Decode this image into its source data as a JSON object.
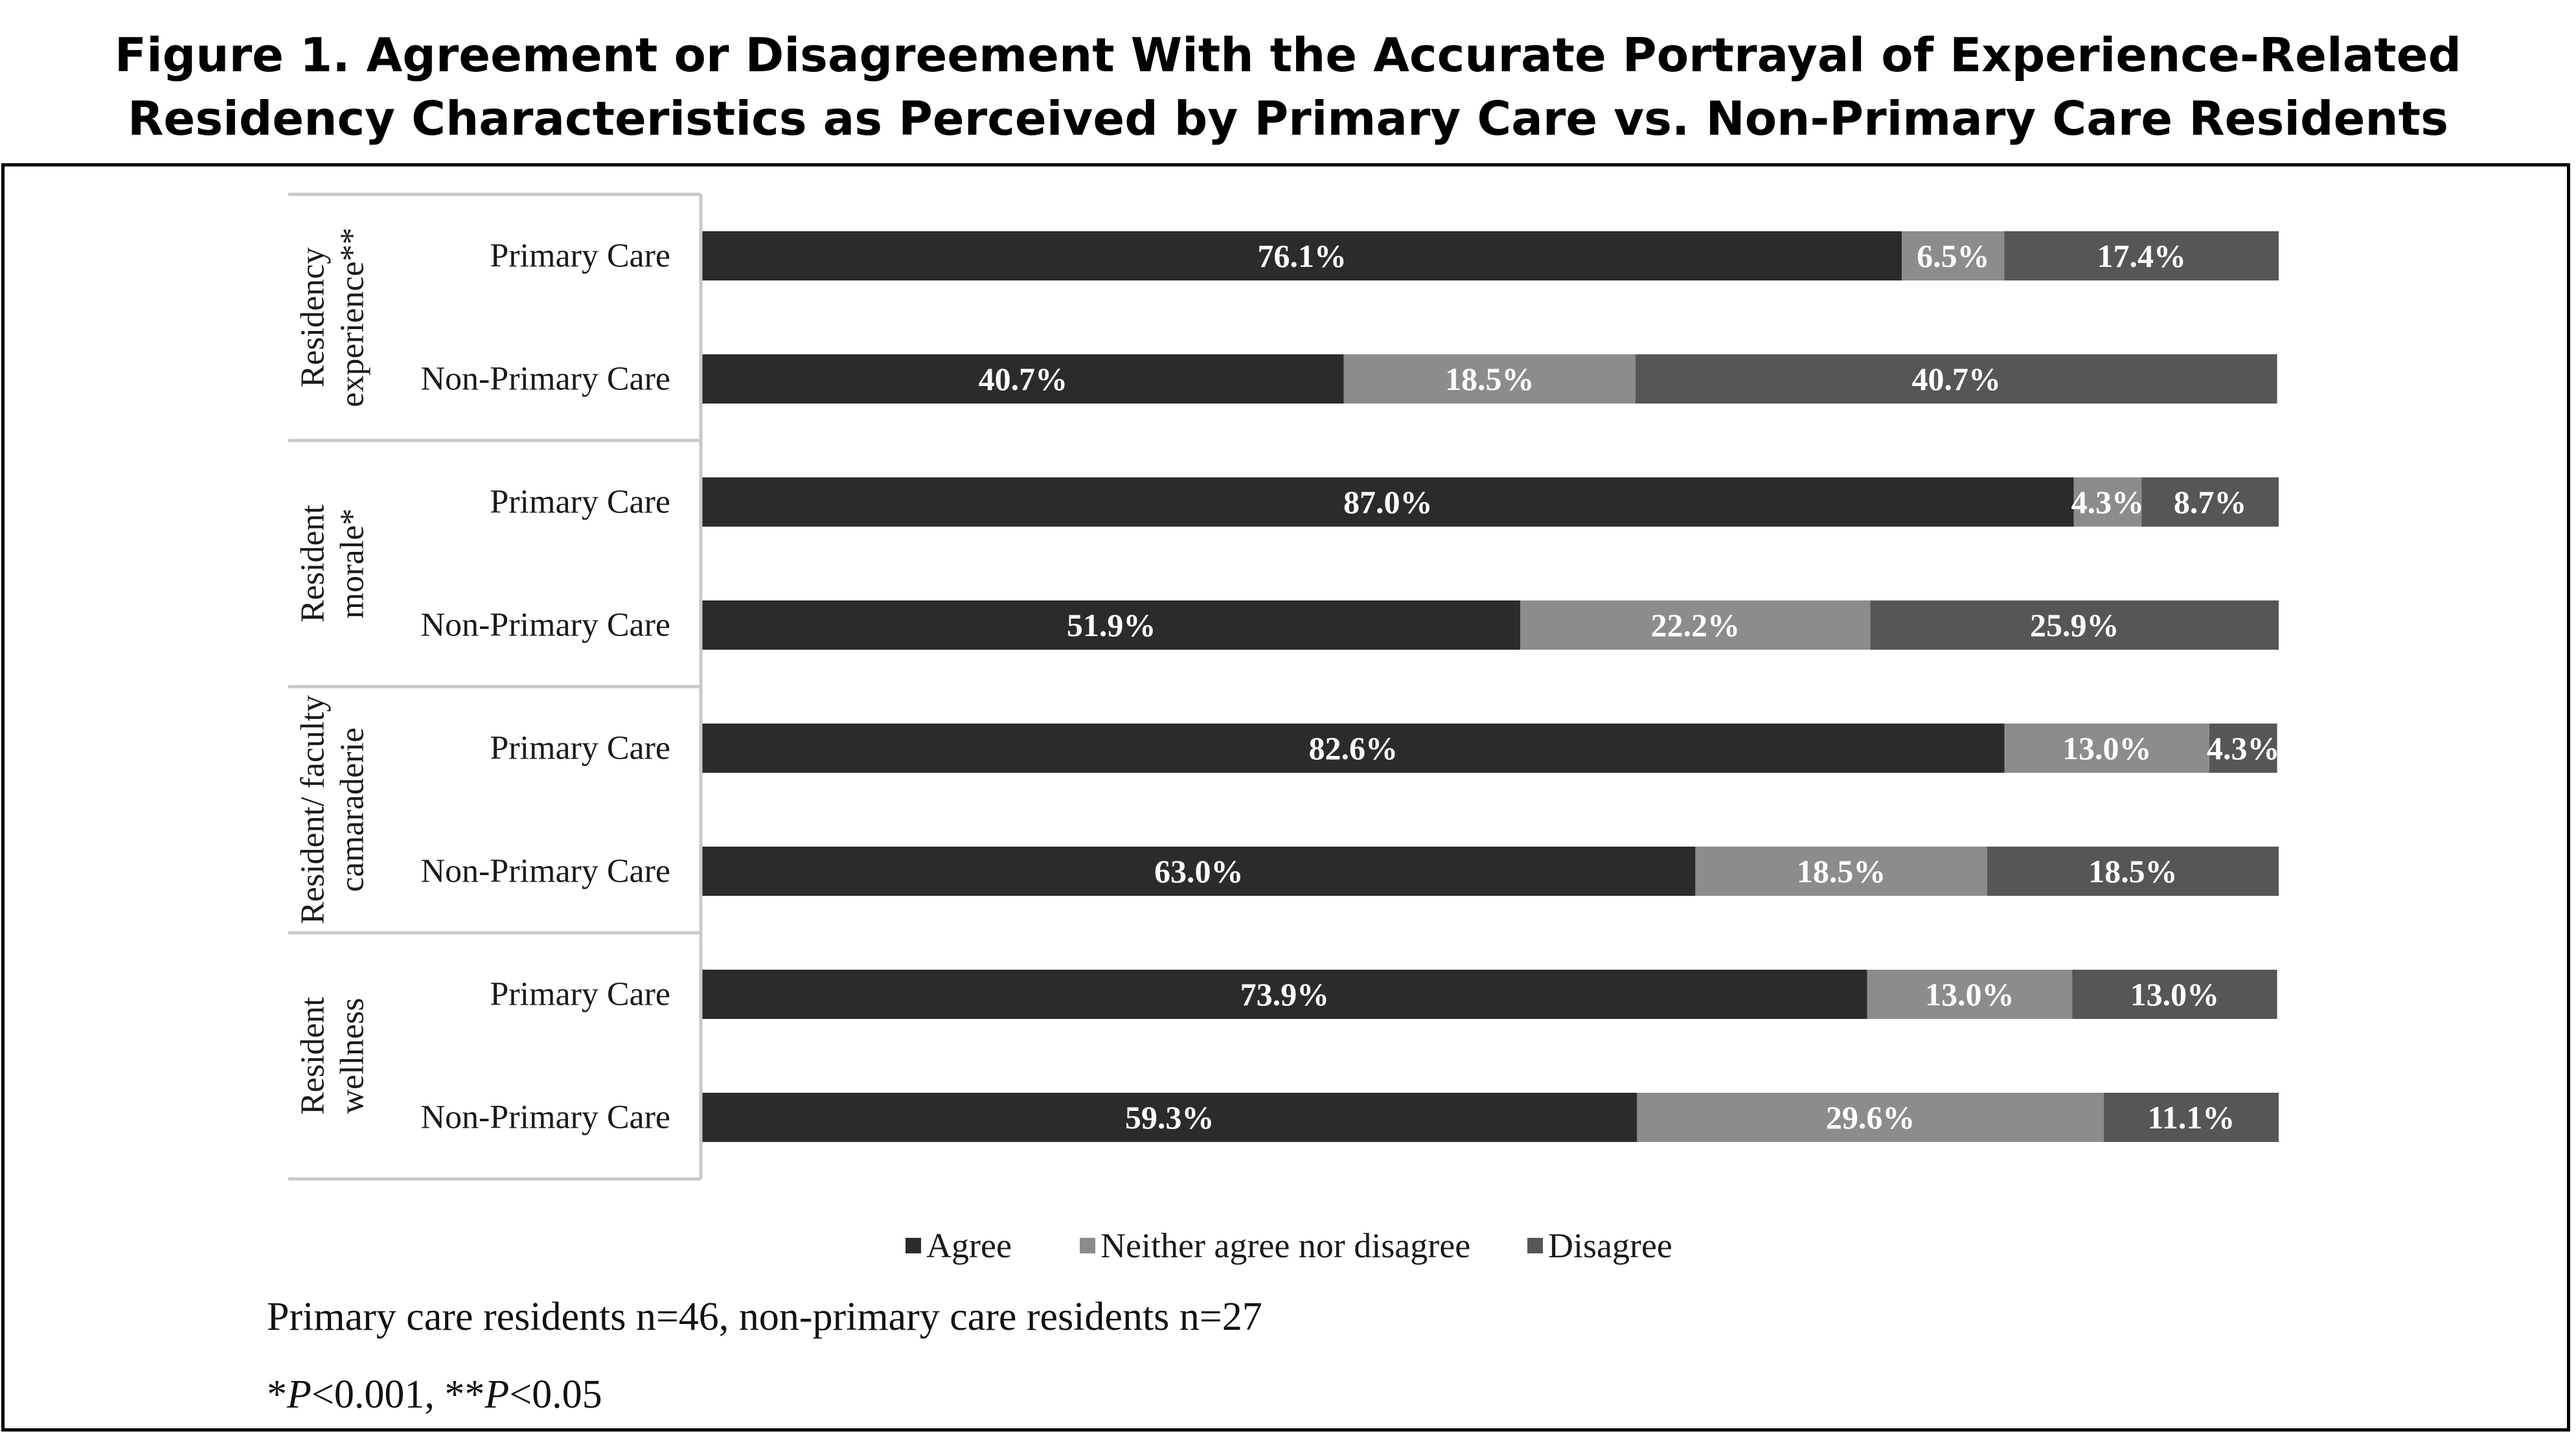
{
  "figure": {
    "title_line1": "Figure 1. Agreement or Disagreement With the Accurate Portrayal of Experience-Related",
    "title_line2": "Residency Characteristics as Perceived by Primary Care vs. Non-Primary Care Residents",
    "sample_note": "Primary care residents n=46, non-primary care residents n=27",
    "sig_note": {
      "a_star": "*",
      "a_p": "P",
      "a_rest": "<0.001, **",
      "b_p": "P",
      "b_rest": "<0.05"
    }
  },
  "colors": {
    "agree": "#2b2b2b",
    "neither": "#8c8c8c",
    "disagree": "#565656",
    "bar_label": "#ffffff",
    "axis_text": "#1a1a1a",
    "divider": "#c8c8c8"
  },
  "chart_data": {
    "type": "bar",
    "orientation": "horizontal",
    "stacked": "100%",
    "title": "Figure 1. Agreement or Disagreement With the Accurate Portrayal of Experience-Related Residency Characteristics as Perceived by Primary Care vs. Non-Primary Care Residents",
    "xlim": [
      0,
      100
    ],
    "grid": false,
    "legend_position": "bottom-center",
    "series": [
      {
        "name": "Agree",
        "color": "#2b2b2b"
      },
      {
        "name": "Neither agree nor disagree",
        "color": "#8c8c8c"
      },
      {
        "name": "Disagree",
        "color": "#565656"
      }
    ],
    "groups": [
      {
        "label": [
          "Residency",
          "experience**"
        ],
        "rows": [
          {
            "category": "Primary Care",
            "values": [
              76.1,
              6.5,
              17.4
            ],
            "labels": [
              "76.1%",
              "6.5%",
              "17.4%"
            ]
          },
          {
            "category": "Non-Primary Care",
            "values": [
              40.7,
              18.5,
              40.7
            ],
            "labels": [
              "40.7%",
              "18.5%",
              "40.7%"
            ]
          }
        ]
      },
      {
        "label": [
          "Resident",
          "morale*"
        ],
        "rows": [
          {
            "category": "Primary Care",
            "values": [
              87.0,
              4.3,
              8.7
            ],
            "labels": [
              "87.0%",
              "4.3%",
              "8.7%"
            ]
          },
          {
            "category": "Non-Primary Care",
            "values": [
              51.9,
              22.2,
              25.9
            ],
            "labels": [
              "51.9%",
              "22.2%",
              "25.9%"
            ]
          }
        ]
      },
      {
        "label": [
          "Resident/ faculty",
          "camaraderie"
        ],
        "rows": [
          {
            "category": "Primary Care",
            "values": [
              82.6,
              13.0,
              4.3
            ],
            "labels": [
              "82.6%",
              "13.0%",
              "4.3%"
            ]
          },
          {
            "category": "Non-Primary Care",
            "values": [
              63.0,
              18.5,
              18.5
            ],
            "labels": [
              "63.0%",
              "18.5%",
              "18.5%"
            ]
          }
        ]
      },
      {
        "label": [
          "Resident",
          "wellness"
        ],
        "rows": [
          {
            "category": "Primary Care",
            "values": [
              73.9,
              13.0,
              13.0
            ],
            "labels": [
              "73.9%",
              "13.0%",
              "13.0%"
            ]
          },
          {
            "category": "Non-Primary Care",
            "values": [
              59.3,
              29.6,
              11.1
            ],
            "labels": [
              "59.3%",
              "29.6%",
              "11.1%"
            ]
          }
        ]
      }
    ]
  }
}
